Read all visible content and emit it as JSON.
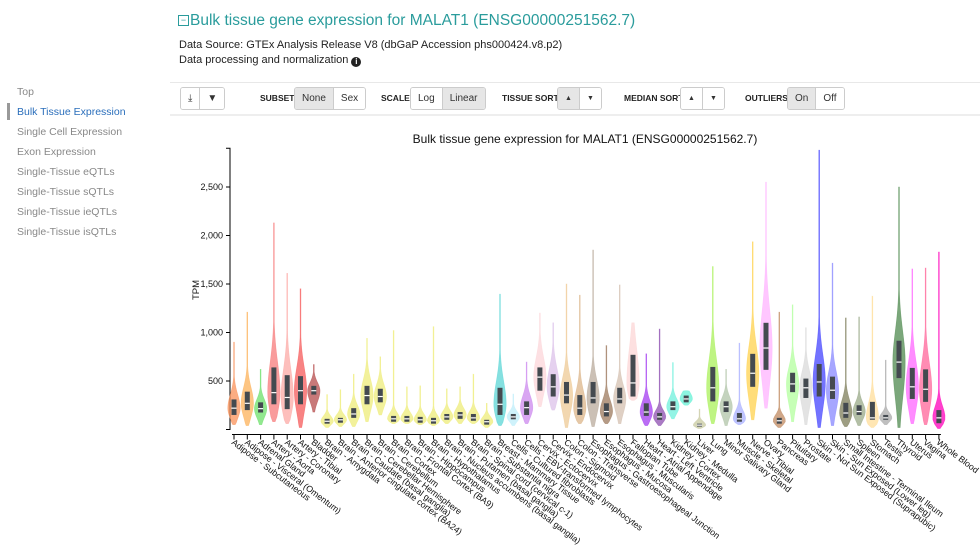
{
  "header": {
    "collapse_icon": "minus-square-icon",
    "title": "Bulk tissue gene expression for MALAT1 (ENSG00000251562.7)",
    "data_source": "Data Source: GTEx Analysis Release V8 (dbGaP Accession phs000424.v8.p2)",
    "processing": "Data processing and normalization",
    "info_icon": "info-circle-icon"
  },
  "nav": {
    "items": [
      {
        "label": "Top"
      },
      {
        "label": "Bulk Tissue Expression",
        "active": true
      },
      {
        "label": "Single Cell Expression"
      },
      {
        "label": "Exon Expression"
      },
      {
        "label": "Single-Tissue eQTLs"
      },
      {
        "label": "Single-Tissue sQTLs"
      },
      {
        "label": "Single-Tissue ieQTLs"
      },
      {
        "label": "Single-Tissue isQTLs"
      }
    ]
  },
  "toolbar": {
    "download_icon": "download-icon",
    "filter_icon": "filter-icon",
    "subset_label": "SUBSET",
    "subset_options": [
      "None",
      "Sex"
    ],
    "subset_selected": "None",
    "scale_label": "SCALE",
    "scale_options": [
      "Log",
      "Linear"
    ],
    "scale_selected": "Linear",
    "tissue_sort_label": "TISSUE SORT",
    "median_sort_label": "MEDIAN SORT",
    "sort_up": "▲",
    "sort_down": "▼",
    "outliers_label": "OUTLIERS",
    "outliers_options": [
      "On",
      "Off"
    ],
    "outliers_selected": "On"
  },
  "chart_data": {
    "type": "violin",
    "title": "Bulk tissue gene expression for MALAT1 (ENSG00000251562.7)",
    "ylabel": "TPM",
    "xlabel": "",
    "ylim": [
      0,
      2900
    ],
    "yticks": [
      "500",
      "1,000",
      "1,500",
      "2,000",
      "2,500"
    ],
    "ytick_values": [
      500,
      1000,
      1500,
      2000,
      2500
    ],
    "grid": false,
    "fields": [
      "name",
      "color",
      "min",
      "q1",
      "median",
      "q3",
      "max"
    ],
    "tissues": [
      [
        "Adipose - Subcutaneous",
        "#f9925a",
        50,
        150,
        220,
        310,
        900
      ],
      [
        "Adipose - Visceral (Omentum)",
        "#fcb25a",
        40,
        200,
        270,
        390,
        1210
      ],
      [
        "Adrenal Gland",
        "#6de06a",
        50,
        175,
        215,
        280,
        620
      ],
      [
        "Artery - Aorta",
        "#f77b7b",
        80,
        260,
        380,
        640,
        2130
      ],
      [
        "Artery - Coronary",
        "#fcaaa6",
        60,
        210,
        330,
        560,
        1610
      ],
      [
        "Artery - Tibial",
        "#f55a5a",
        20,
        260,
        400,
        550,
        1450
      ],
      [
        "Bladder",
        "#b64c4c",
        180,
        360,
        400,
        450,
        670
      ],
      [
        "Brain - Amygdala",
        "#eeec7a",
        20,
        60,
        85,
        110,
        360
      ],
      [
        "Brain - Anterior cingulate cortex (BA24)",
        "#eeec7a",
        30,
        70,
        100,
        120,
        410
      ],
      [
        "Brain - Caudate (basal ganglia)",
        "#eeec7a",
        30,
        120,
        160,
        220,
        570
      ],
      [
        "Brain - Cerebellar Hemisphere",
        "#eeec7a",
        80,
        260,
        350,
        450,
        940
      ],
      [
        "Brain - Cerebellum",
        "#eeec7a",
        150,
        280,
        340,
        420,
        750
      ],
      [
        "Brain - Cortex",
        "#eeec7a",
        60,
        80,
        110,
        140,
        1020
      ],
      [
        "Brain - Frontal Cortex (BA9)",
        "#eeec7a",
        60,
        80,
        110,
        140,
        440
      ],
      [
        "Brain - Hippocampus",
        "#eeec7a",
        50,
        70,
        100,
        130,
        450
      ],
      [
        "Brain - Hypothalamus",
        "#eeec7a",
        40,
        60,
        90,
        120,
        1060
      ],
      [
        "Brain - Nucleus accumbens (basal ganglia)",
        "#eeec7a",
        60,
        100,
        130,
        160,
        420
      ],
      [
        "Brain - Putamen (basal ganglia)",
        "#eeec7a",
        60,
        110,
        150,
        180,
        440
      ],
      [
        "Brain - Spinal cord (cervical c-1)",
        "#eeec7a",
        60,
        90,
        120,
        160,
        570
      ],
      [
        "Brain - Substantia nigra",
        "#eeec7a",
        20,
        50,
        80,
        100,
        270
      ],
      [
        "Breast - Mammary Tissue",
        "#5cd6d6",
        40,
        150,
        260,
        430,
        1395
      ],
      [
        "Cells - Cultured fibroblasts",
        "#bfeefa",
        40,
        105,
        130,
        160,
        365
      ],
      [
        "Cells - EBV-transformed lymphocytes",
        "#cc88ee",
        60,
        150,
        225,
        290,
        695
      ],
      [
        "Cervix - Ectocervix",
        "#fcd5d9",
        235,
        400,
        540,
        640,
        1200
      ],
      [
        "Cervix - Endocervix",
        "#dcc2ea",
        200,
        340,
        440,
        570,
        1100
      ],
      [
        "Colon - Sigmoid",
        "#eec995",
        20,
        270,
        355,
        490,
        1500
      ],
      [
        "Colon - Transverse",
        "#dcb68a",
        60,
        150,
        220,
        355,
        1385
      ],
      [
        "Esophagus - Gastroesophageal Junction",
        "#b9ab9c",
        30,
        270,
        325,
        490,
        1850
      ],
      [
        "Esophagus - Mucosa",
        "#9c7a5e",
        60,
        135,
        185,
        270,
        865
      ],
      [
        "Esophagus - Muscularis",
        "#d4c0b0",
        60,
        270,
        315,
        430,
        1490
      ],
      [
        "Fallopian Tube",
        "#fcd6d6",
        300,
        340,
        480,
        770,
        1100
      ],
      [
        "Heart - Atrial Appendage",
        "#a33cf0",
        40,
        140,
        180,
        270,
        780
      ],
      [
        "Heart - Left Ventricle",
        "#8e4fb0",
        40,
        100,
        130,
        170,
        1035
      ],
      [
        "Kidney - Cortex",
        "#6ff0dc",
        110,
        200,
        235,
        290,
        690
      ],
      [
        "Kidney - Medulla",
        "#66f2d6",
        250,
        280,
        315,
        350,
        400
      ],
      [
        "Liver",
        "#c8caa0",
        10,
        30,
        45,
        60,
        210
      ],
      [
        "Lung",
        "#aaf05a",
        60,
        290,
        430,
        645,
        1680
      ],
      [
        "Minor Salivary Gland",
        "#b0c4a8",
        40,
        180,
        235,
        290,
        620
      ],
      [
        "Muscle - Skeletal",
        "#aab0ff",
        50,
        80,
        110,
        170,
        890
      ],
      [
        "Nerve - Tibial",
        "#ffd24d",
        100,
        440,
        580,
        780,
        1935
      ],
      [
        "Ovary",
        "#ffb3ff",
        220,
        615,
        840,
        1100,
        2550
      ],
      [
        "Pancreas",
        "#c08a60",
        20,
        60,
        90,
        120,
        1210
      ],
      [
        "Pituitary",
        "#b3ff9e",
        80,
        385,
        470,
        585,
        1285
      ],
      [
        "Prostate",
        "#d9d9d9",
        50,
        325,
        430,
        525,
        1050
      ],
      [
        "Skin - Not Sun Exposed (Suprapubic)",
        "#4444ff",
        20,
        340,
        490,
        675,
        2880
      ],
      [
        "Skin - Sun Exposed (Lower leg)",
        "#8888ff",
        40,
        315,
        405,
        545,
        1715
      ],
      [
        "Small Intestine - Terminal Ileum",
        "#7d7d5a",
        30,
        120,
        170,
        275,
        1150
      ],
      [
        "Spleen",
        "#99aa88",
        40,
        150,
        185,
        250,
        1160
      ],
      [
        "Stomach",
        "#ffdd99",
        20,
        100,
        120,
        285,
        1375
      ],
      [
        "Testis",
        "#aaaaaa",
        50,
        100,
        120,
        150,
        715
      ],
      [
        "Thyroid",
        "#4f8a4f",
        20,
        530,
        695,
        915,
        2500
      ],
      [
        "Uterus",
        "#ff66ff",
        60,
        315,
        440,
        635,
        1655
      ],
      [
        "Vagina",
        "#ff6699",
        50,
        285,
        415,
        620,
        1665
      ],
      [
        "Whole Blood",
        "#ff00bb",
        10,
        65,
        120,
        200,
        1830
      ]
    ]
  }
}
